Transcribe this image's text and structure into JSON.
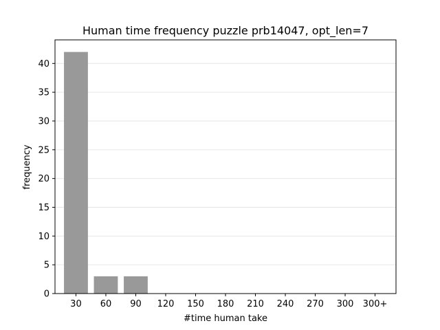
{
  "chart_data": {
    "type": "bar",
    "title": "Human time frequency puzzle prb14047, opt_len=7",
    "xlabel": "#time human take",
    "ylabel": "frequency",
    "categories": [
      "30",
      "60",
      "90",
      "120",
      "150",
      "180",
      "210",
      "240",
      "270",
      "300",
      "300+"
    ],
    "values": [
      42,
      3,
      3,
      0,
      0,
      0,
      0,
      0,
      0,
      0,
      0
    ],
    "ylim": [
      0,
      44.1
    ],
    "yticks": [
      0,
      5,
      10,
      15,
      20,
      25,
      30,
      35,
      40
    ],
    "grid": "horizontal",
    "bar_color": "#999999",
    "grid_color": "#e6e6e6"
  }
}
